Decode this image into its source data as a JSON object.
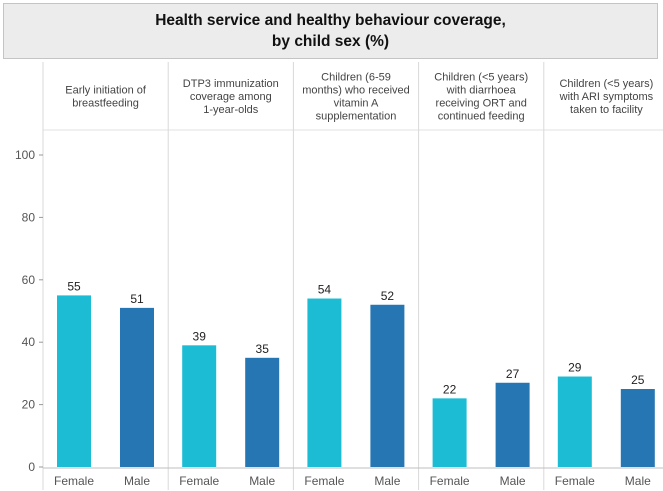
{
  "title": {
    "line1": "Health service and healthy behaviour coverage,",
    "line2": "by child sex (%)"
  },
  "colors": {
    "female": "#1cbcd4",
    "male": "#2676b3",
    "grid": "#d9d9d9",
    "axis": "#555555"
  },
  "chart_data": {
    "type": "bar",
    "title": "Health service and healthy behaviour coverage, by child sex (%)",
    "ylim": [
      0,
      100
    ],
    "yticks": [
      0,
      20,
      40,
      60,
      80,
      100
    ],
    "legend": "none",
    "categories": [
      "Female",
      "Male"
    ],
    "panels": [
      {
        "label": "Early initiation of breastfeeding",
        "values": [
          55,
          51
        ]
      },
      {
        "label": "DTP3 immunization coverage among 1-year-olds",
        "values": [
          39,
          35
        ]
      },
      {
        "label": "Children (6-59 months) who received vitamin A supplementation",
        "values": [
          54,
          52
        ]
      },
      {
        "label": "Children (<5 years) with diarrhoea receiving ORT and continued feeding",
        "values": [
          22,
          27
        ]
      },
      {
        "label": "Children (<5 years) with ARI symptoms taken to facility",
        "values": [
          29,
          25
        ]
      }
    ],
    "panel_label_lines": [
      [
        "Early initiation of",
        "breastfeeding"
      ],
      [
        "DTP3 immunization",
        "coverage among",
        "1-year-olds"
      ],
      [
        "Children (6-59",
        "months) who received",
        "vitamin A",
        "supplementation"
      ],
      [
        "Children (<5 years)",
        "with diarrhoea",
        "receiving ORT and",
        "continued feeding"
      ],
      [
        "Children (<5 years)",
        "with ARI symptoms",
        "taken to facility"
      ]
    ]
  }
}
